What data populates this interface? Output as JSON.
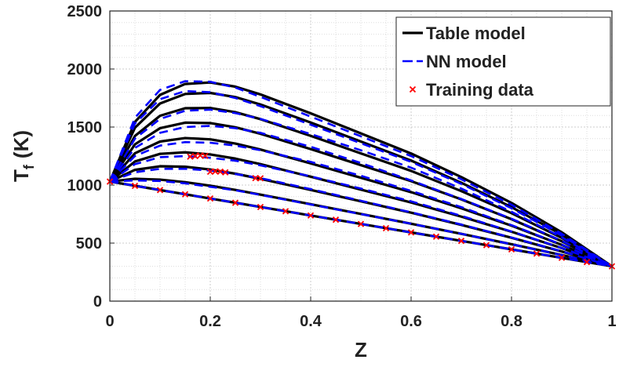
{
  "chart_data": {
    "type": "line",
    "xlabel": "Z",
    "ylabel": {
      "base": "T",
      "sub": "f",
      "rest": "(K)"
    },
    "xlim": [
      0,
      1
    ],
    "ylim": [
      0,
      2500
    ],
    "xticks": [
      0,
      0.2,
      0.4,
      0.6,
      0.8,
      1
    ],
    "yticks": [
      0,
      500,
      1000,
      1500,
      2000,
      2500
    ],
    "grid": true,
    "minor_grid": true,
    "legend": "top-right",
    "x": [
      0,
      0.05,
      0.1,
      0.15,
      0.2,
      0.25,
      0.3,
      0.4,
      0.5,
      0.6,
      0.7,
      0.8,
      0.9,
      1
    ],
    "series": [
      {
        "name": "Table model",
        "color": "#000000",
        "style": "solid",
        "curves": [
          [
            1030,
            1544,
            1777,
            1871,
            1884,
            1848,
            1781,
            1618,
            1445,
            1272,
            1069,
            846,
            593,
            300
          ],
          [
            1030,
            1494,
            1703,
            1785,
            1794,
            1758,
            1694,
            1539,
            1375,
            1211,
            1020,
            810,
            573,
            300
          ],
          [
            1030,
            1423,
            1597,
            1662,
            1664,
            1628,
            1568,
            1424,
            1273,
            1122,
            948,
            758,
            545,
            300
          ],
          [
            1030,
            1351,
            1490,
            1538,
            1534,
            1498,
            1442,
            1310,
            1172,
            1034,
            877,
            706,
            516,
            300
          ],
          [
            1030,
            1274,
            1375,
            1405,
            1394,
            1358,
            1306,
            1187,
            1063,
            939,
            800,
            650,
            485,
            300
          ],
          [
            1030,
            1203,
            1269,
            1282,
            1264,
            1228,
            1180,
            1072,
            961,
            850,
            728,
            598,
            457,
            300
          ],
          [
            1030,
            1131,
            1162,
            1158,
            1134,
            1098,
            1054,
            958,
            860,
            762,
            657,
            546,
            428,
            300
          ],
          [
            1030,
            1054,
            1047,
            1025,
            994,
            958,
            918,
            835,
            751,
            667,
            580,
            490,
            397,
            300
          ],
          [
            1030,
            994,
            957,
            921,
            884,
            848,
            811,
            738,
            665,
            592,
            519,
            446,
            373,
            300
          ]
        ]
      },
      {
        "name": "NN model",
        "color": "#0000ff",
        "style": "dashed",
        "curves": [
          [
            1030,
            1580,
            1820,
            1895,
            1890,
            1840,
            1760,
            1590,
            1420,
            1250,
            1050,
            830,
            580,
            300
          ],
          [
            1030,
            1530,
            1740,
            1810,
            1800,
            1750,
            1680,
            1520,
            1360,
            1200,
            1010,
            800,
            565,
            300
          ],
          [
            1030,
            1400,
            1570,
            1640,
            1650,
            1620,
            1570,
            1440,
            1300,
            1150,
            970,
            770,
            550,
            300
          ],
          [
            1030,
            1320,
            1450,
            1500,
            1510,
            1490,
            1450,
            1330,
            1190,
            1040,
            880,
            710,
            520,
            300
          ],
          [
            1030,
            1250,
            1340,
            1370,
            1365,
            1340,
            1300,
            1200,
            1080,
            950,
            810,
            655,
            487,
            300
          ],
          [
            1030,
            1180,
            1240,
            1250,
            1235,
            1210,
            1170,
            1075,
            970,
            860,
            735,
            600,
            458,
            300
          ],
          [
            1030,
            1110,
            1140,
            1140,
            1125,
            1095,
            1060,
            965,
            865,
            765,
            660,
            548,
            430,
            300
          ],
          [
            1030,
            1040,
            1035,
            1015,
            985,
            955,
            915,
            833,
            750,
            667,
            580,
            490,
            397,
            300
          ],
          [
            1030,
            994,
            957,
            921,
            884,
            848,
            811,
            738,
            665,
            592,
            519,
            446,
            373,
            300
          ]
        ]
      },
      {
        "name": "Training data",
        "color": "#ff0000",
        "style": "marker",
        "x": [
          0,
          0.05,
          0.1,
          0.15,
          0.2,
          0.25,
          0.3,
          0.35,
          0.4,
          0.45,
          0.5,
          0.55,
          0.6,
          0.65,
          0.7,
          0.75,
          0.8,
          0.85,
          0.9,
          0.95,
          1,
          0.16,
          0.17,
          0.18,
          0.19,
          0.2,
          0.21,
          0.22,
          0.23,
          0.29,
          0.3
        ],
        "values": [
          1030,
          993.5,
          957,
          920.5,
          884,
          847.5,
          811,
          774.5,
          738,
          701.5,
          665,
          628.5,
          592,
          555.5,
          519,
          482.5,
          446,
          409.5,
          373,
          336.5,
          300,
          1245,
          1250,
          1255,
          1252,
          1115,
          1118,
          1116,
          1110,
          1060,
          1058
        ]
      }
    ]
  }
}
